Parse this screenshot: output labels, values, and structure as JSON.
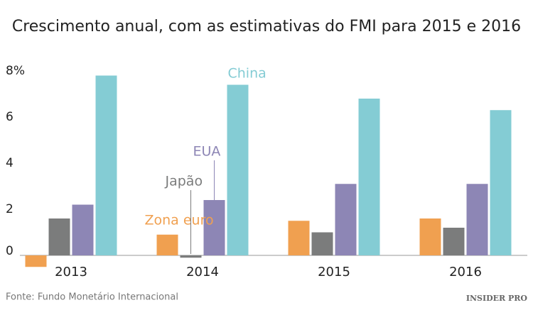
{
  "chart_data": {
    "type": "bar",
    "title": "Crescimento anual, com as estimativas do FMI para 2015 e 2016",
    "categories": [
      "2013",
      "2014",
      "2015",
      "2016"
    ],
    "series": [
      {
        "name": "Zona euro",
        "color": "#f0a050",
        "values": [
          -0.5,
          0.9,
          1.5,
          1.6
        ]
      },
      {
        "name": "Japão",
        "color": "#7b7c7c",
        "values": [
          1.6,
          -0.1,
          1.0,
          1.2
        ]
      },
      {
        "name": "EUA",
        "color": "#8d86b5",
        "values": [
          2.2,
          2.4,
          3.1,
          3.1
        ]
      },
      {
        "name": "China",
        "color": "#84ccd4",
        "values": [
          7.8,
          7.4,
          6.8,
          6.3
        ]
      }
    ],
    "ylim": [
      -1,
      8.5
    ],
    "yticks": [
      0,
      2,
      4,
      6,
      {
        "value": 8,
        "label": "8%"
      }
    ],
    "grid": false,
    "source": "Fonte: Fundo Monetário Internacional",
    "logo": "INSIDER PRO"
  }
}
